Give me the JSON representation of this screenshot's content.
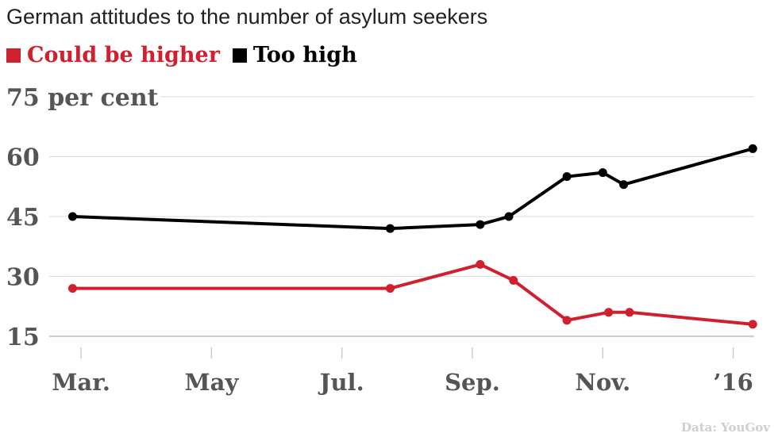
{
  "chart_data": {
    "type": "line",
    "title": "German attitudes to the number of asylum seekers",
    "source": "Data: YouGov",
    "ylim": [
      15,
      75
    ],
    "y_ticks": [
      {
        "value": 75,
        "label": "75 per cent"
      },
      {
        "value": 60,
        "label": "60"
      },
      {
        "value": 45,
        "label": "45"
      },
      {
        "value": 30,
        "label": "30"
      },
      {
        "value": 15,
        "label": "15"
      }
    ],
    "x_range": [
      0,
      11.2
    ],
    "x_ticks": [
      {
        "value": 1,
        "label": "Mar."
      },
      {
        "value": 3,
        "label": "May"
      },
      {
        "value": 5,
        "label": "Jul."
      },
      {
        "value": 7,
        "label": "Sep."
      },
      {
        "value": 9,
        "label": "Nov."
      },
      {
        "value": 11,
        "label": "’16"
      }
    ],
    "series": [
      {
        "name": "Could be higher",
        "color": "#d0202e",
        "points": [
          [
            0.87,
            27
          ],
          [
            5.74,
            27
          ],
          [
            7.12,
            33
          ],
          [
            7.63,
            29
          ],
          [
            8.45,
            19
          ],
          [
            9.09,
            21
          ],
          [
            9.41,
            21
          ],
          [
            11.3,
            18
          ]
        ]
      },
      {
        "name": "Too high",
        "color": "#000000",
        "points": [
          [
            0.87,
            45
          ],
          [
            5.74,
            42
          ],
          [
            7.12,
            43
          ],
          [
            7.56,
            45
          ],
          [
            8.45,
            55
          ],
          [
            9.0,
            56
          ],
          [
            9.32,
            53
          ],
          [
            11.3,
            62
          ]
        ]
      }
    ]
  }
}
